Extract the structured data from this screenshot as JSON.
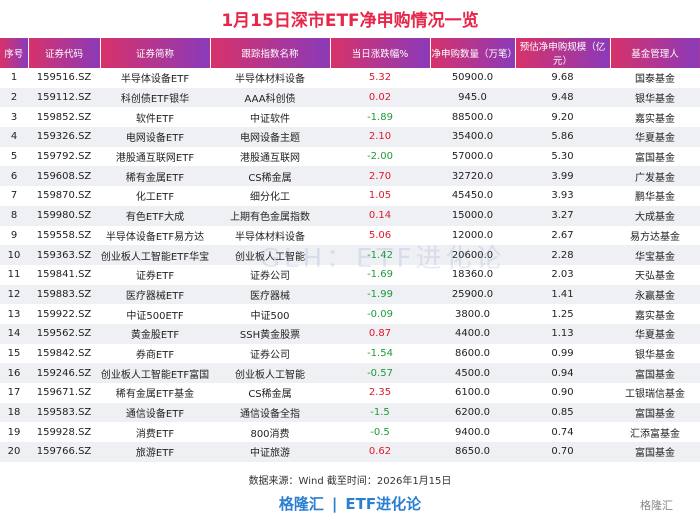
{
  "header": {
    "title": "1月15日深市ETF净申购情况一览"
  },
  "table": {
    "columns": [
      "序号",
      "证券代码",
      "证券简称",
      "跟踪指数名称",
      "当日涨跌幅%",
      "净申购数量（万笔）",
      "预估净申购规模（亿元）",
      "基金管理人"
    ],
    "rows": [
      [
        "1",
        "159516.SZ",
        "半导体设备ETF",
        "半导体材料设备",
        "5.32",
        "50900.0",
        "9.68",
        "国泰基金"
      ],
      [
        "2",
        "159112.SZ",
        "科创债ETF银华",
        "AAA科创债",
        "0.02",
        "945.0",
        "9.48",
        "银华基金"
      ],
      [
        "3",
        "159852.SZ",
        "软件ETF",
        "中证软件",
        "-1.89",
        "88500.0",
        "9.20",
        "嘉实基金"
      ],
      [
        "4",
        "159326.SZ",
        "电网设备ETF",
        "电网设备主题",
        "2.10",
        "35400.0",
        "5.86",
        "华夏基金"
      ],
      [
        "5",
        "159792.SZ",
        "港股通互联网ETF",
        "港股通互联网",
        "-2.00",
        "57000.0",
        "5.30",
        "富国基金"
      ],
      [
        "6",
        "159608.SZ",
        "稀有金属ETF",
        "CS稀金属",
        "2.70",
        "32720.0",
        "3.99",
        "广发基金"
      ],
      [
        "7",
        "159870.SZ",
        "化工ETF",
        "细分化工",
        "1.05",
        "45450.0",
        "3.93",
        "鹏华基金"
      ],
      [
        "8",
        "159980.SZ",
        "有色ETF大成",
        "上期有色金属指数",
        "0.14",
        "15000.0",
        "3.27",
        "大成基金"
      ],
      [
        "9",
        "159558.SZ",
        "半导体设备ETF易方达",
        "半导体材料设备",
        "5.06",
        "12000.0",
        "2.67",
        "易方达基金"
      ],
      [
        "10",
        "159363.SZ",
        "创业板人工智能ETF华宝",
        "创业板人工智能",
        "-1.42",
        "20600.0",
        "2.28",
        "华宝基金"
      ],
      [
        "11",
        "159841.SZ",
        "证券ETF",
        "证券公司",
        "-1.69",
        "18360.0",
        "2.03",
        "天弘基金"
      ],
      [
        "12",
        "159883.SZ",
        "医疗器械ETF",
        "医疗器械",
        "-1.99",
        "25900.0",
        "1.41",
        "永赢基金"
      ],
      [
        "13",
        "159922.SZ",
        "中证500ETF",
        "中证500",
        "-0.09",
        "3800.0",
        "1.25",
        "嘉实基金"
      ],
      [
        "14",
        "159562.SZ",
        "黄金股ETF",
        "SSH黄金股票",
        "0.87",
        "4400.0",
        "1.13",
        "华夏基金"
      ],
      [
        "15",
        "159842.SZ",
        "券商ETF",
        "证券公司",
        "-1.54",
        "8600.0",
        "0.99",
        "银华基金"
      ],
      [
        "16",
        "159246.SZ",
        "创业板人工智能ETF富国",
        "创业板人工智能",
        "-0.57",
        "4500.0",
        "0.94",
        "富国基金"
      ],
      [
        "17",
        "159671.SZ",
        "稀有金属ETF基金",
        "CS稀金属",
        "2.35",
        "6100.0",
        "0.90",
        "工银瑞信基金"
      ],
      [
        "18",
        "159583.SZ",
        "通信设备ETF",
        "通信设备全指",
        "-1.5",
        "6200.0",
        "0.85",
        "富国基金"
      ],
      [
        "19",
        "159928.SZ",
        "消费ETF",
        "800消费",
        "-0.5",
        "9400.0",
        "0.74",
        "汇添富基金"
      ],
      [
        "20",
        "159766.SZ",
        "旅游ETF",
        "中证旅游",
        "0.62",
        "8650.0",
        "0.70",
        "富国基金"
      ]
    ]
  },
  "watermark": "GLH：ETF进化论",
  "footer": {
    "source": "数据来源：Wind 截至时间：2026年1月15日",
    "brand_left": "格隆汇",
    "brand_right": "ETF进化论",
    "logo": "格隆汇"
  }
}
